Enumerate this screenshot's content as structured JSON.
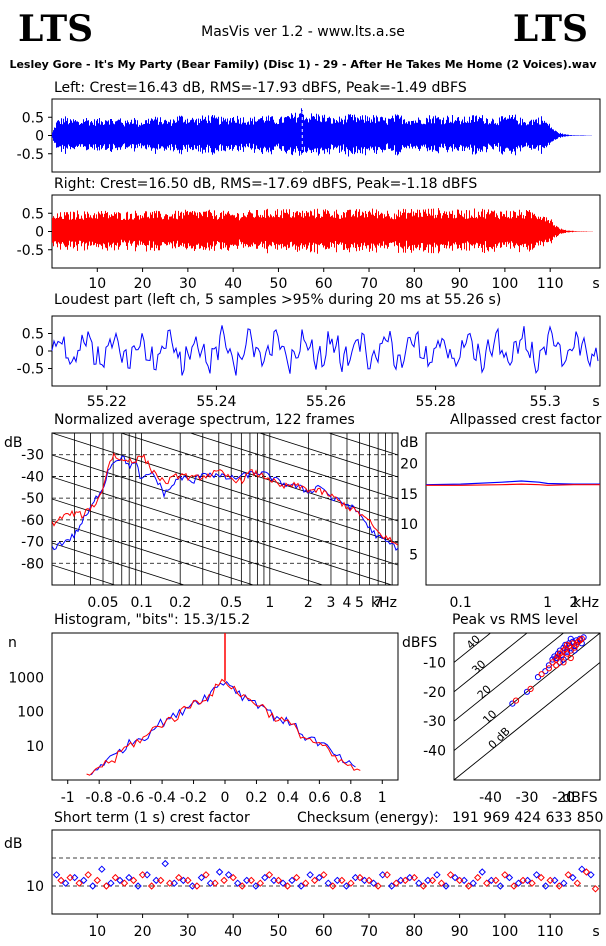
{
  "header": {
    "logo_left": "LTS",
    "logo_right": "LTS",
    "app_title": "MasVis ver 1.2 - www.lts.a.se",
    "filename": "Lesley Gore - It's My Party (Bear Family) (Disc 1) - 29 - After He Takes Me Home (2 Voices).wav"
  },
  "colors": {
    "left": "#0000ff",
    "right": "#ff0000",
    "axis": "#000000",
    "grid": "#000000"
  },
  "panels": {
    "left_wave": {
      "title": "Left: Crest=16.43 dB, RMS=-17.93 dBFS, Peak=-1.49 dBFS"
    },
    "right_wave": {
      "title": "Right: Crest=16.50 dB, RMS=-17.69 dBFS, Peak=-1.18 dBFS"
    },
    "loudest": {
      "title": "Loudest part (left  ch, 5 samples >95% during 20 ms at 55.26 s)"
    },
    "spectrum": {
      "title": "Normalized average spectrum, 122 frames"
    },
    "allpass": {
      "title": "Allpassed crest factor"
    },
    "histogram": {
      "title": "Histogram, \"bits\": 15.3/15.2"
    },
    "peakrms": {
      "title": "Peak vs RMS level"
    },
    "shortterm": {
      "title": "Short term (1 s) crest factor",
      "checksum_label": "Checksum (energy):",
      "checksum_value": "191 969 424 633 850"
    }
  },
  "chart_data": [
    {
      "id": "left_wave",
      "type": "area",
      "title": "Left: Crest=16.43 dB, RMS=-17.93 dBFS, Peak=-1.49 dBFS",
      "ylim": [
        -1,
        1
      ],
      "yticks": [
        "0.5",
        "0",
        "-0.5"
      ],
      "xlim": [
        0,
        121
      ],
      "series": [
        {
          "color": "#0000ff",
          "x": [
            0,
            1,
            2,
            3,
            4,
            5,
            6,
            7,
            8,
            9,
            10,
            11,
            12,
            13,
            14,
            15,
            16,
            17,
            18,
            19,
            20,
            22,
            24,
            26,
            28,
            30,
            32,
            34,
            36,
            38,
            40,
            42,
            44,
            46,
            48,
            50,
            52,
            54,
            55.26,
            56,
            58,
            60,
            62,
            64,
            66,
            68,
            70,
            72,
            74,
            76,
            78,
            80,
            82,
            84,
            86,
            88,
            90,
            92,
            94,
            96,
            98,
            100,
            102,
            104,
            106,
            108,
            110,
            111,
            112,
            113,
            114,
            116,
            118,
            120
          ],
          "amp": [
            0.1,
            0.45,
            0.5,
            0.55,
            0.45,
            0.5,
            0.4,
            0.55,
            0.5,
            0.45,
            0.5,
            0.45,
            0.6,
            0.5,
            0.45,
            0.55,
            0.4,
            0.5,
            0.55,
            0.4,
            0.45,
            0.55,
            0.5,
            0.45,
            0.6,
            0.55,
            0.5,
            0.6,
            0.55,
            0.5,
            0.6,
            0.55,
            0.5,
            0.6,
            0.55,
            0.5,
            0.6,
            0.65,
            0.85,
            0.6,
            0.65,
            0.6,
            0.5,
            0.55,
            0.6,
            0.55,
            0.6,
            0.55,
            0.5,
            0.6,
            0.55,
            0.5,
            0.55,
            0.6,
            0.55,
            0.6,
            0.5,
            0.55,
            0.6,
            0.55,
            0.5,
            0.55,
            0.6,
            0.45,
            0.5,
            0.55,
            0.3,
            0.15,
            0.08,
            0.04,
            0.02,
            0.01,
            0.005,
            0.0
          ]
        }
      ]
    },
    {
      "id": "right_wave",
      "type": "area",
      "title": "Right: Crest=16.50 dB, RMS=-17.69 dBFS, Peak=-1.18 dBFS",
      "ylim": [
        -1,
        1
      ],
      "yticks": [
        "0.5",
        "0",
        "-0.5"
      ],
      "xlim": [
        0,
        121
      ],
      "xticks": [
        "10",
        "20",
        "30",
        "40",
        "50",
        "60",
        "70",
        "80",
        "90",
        "100",
        "110"
      ],
      "xunit": "s",
      "series": [
        {
          "color": "#ff0000",
          "x": [
            0,
            2,
            4,
            6,
            8,
            10,
            15,
            20,
            25,
            30,
            35,
            40,
            45,
            50,
            55,
            60,
            65,
            70,
            75,
            80,
            85,
            90,
            95,
            100,
            105,
            108,
            110,
            111,
            112,
            113,
            114,
            116,
            118,
            120
          ],
          "amp": [
            0.45,
            0.55,
            0.55,
            0.6,
            0.55,
            0.6,
            0.55,
            0.6,
            0.55,
            0.6,
            0.6,
            0.55,
            0.6,
            0.65,
            0.6,
            0.65,
            0.6,
            0.65,
            0.6,
            0.65,
            0.65,
            0.6,
            0.65,
            0.6,
            0.6,
            0.55,
            0.4,
            0.2,
            0.1,
            0.05,
            0.03,
            0.01,
            0.005,
            0.0
          ]
        }
      ]
    },
    {
      "id": "loudest",
      "type": "line",
      "title": "Loudest part (left  ch, 5 samples >95% during 20 ms at 55.26 s)",
      "ylim": [
        -1,
        1
      ],
      "yticks": [
        "0.5",
        "0",
        "-0.5"
      ],
      "xlim": [
        55.21,
        55.31
      ],
      "xticks": [
        "55.22",
        "55.24",
        "55.26",
        "55.28",
        "55.3"
      ],
      "xunit": "s",
      "series": [
        {
          "color": "#0000ff"
        }
      ]
    },
    {
      "id": "spectrum",
      "type": "line",
      "title": "Normalized average spectrum, 122 frames",
      "ylabel": "dB",
      "yticks": [
        "-30",
        "-40",
        "-50",
        "-60",
        "-70",
        "-80"
      ],
      "ylim": [
        -90,
        -20
      ],
      "xticks": [
        "0.05",
        "0.1",
        "0.2",
        "0.5",
        "1",
        "2",
        "3",
        "4",
        "5",
        "7"
      ],
      "xunit": "kHz",
      "xlim": [
        0.02,
        10
      ],
      "xscale": "log",
      "series": [
        {
          "name": "left",
          "color": "#0000ff",
          "x": [
            0.02,
            0.025,
            0.03,
            0.035,
            0.04,
            0.045,
            0.05,
            0.055,
            0.06,
            0.07,
            0.08,
            0.09,
            0.1,
            0.12,
            0.15,
            0.2,
            0.25,
            0.3,
            0.4,
            0.5,
            0.6,
            0.7,
            0.8,
            1,
            1.2,
            1.5,
            2,
            2.5,
            3,
            4,
            5,
            6,
            7,
            8,
            10
          ],
          "y": [
            -73,
            -70,
            -67,
            -60,
            -55,
            -49,
            -45,
            -37,
            -33,
            -31,
            -35,
            -34,
            -42,
            -38,
            -48,
            -40,
            -43,
            -38,
            -40,
            -41,
            -40,
            -39,
            -38,
            -40,
            -43,
            -44,
            -47,
            -44,
            -50,
            -53,
            -57,
            -64,
            -68,
            -70,
            -73
          ]
        },
        {
          "name": "right",
          "color": "#ff0000",
          "x": [
            0.02,
            0.025,
            0.03,
            0.035,
            0.04,
            0.045,
            0.05,
            0.055,
            0.06,
            0.07,
            0.08,
            0.09,
            0.1,
            0.12,
            0.15,
            0.2,
            0.25,
            0.3,
            0.4,
            0.5,
            0.6,
            0.7,
            0.8,
            1,
            1.2,
            1.5,
            2,
            2.5,
            3,
            4,
            5,
            6,
            7,
            8,
            10
          ],
          "y": [
            -62,
            -58,
            -57,
            -58,
            -54,
            -52,
            -45,
            -35,
            -30,
            -33,
            -32,
            -33,
            -30,
            -37,
            -43,
            -39,
            -41,
            -40,
            -38,
            -41,
            -42,
            -38,
            -39,
            -41,
            -45,
            -44,
            -46,
            -47,
            -49,
            -54,
            -57,
            -61,
            -66,
            -68,
            -72
          ]
        }
      ]
    },
    {
      "id": "allpass",
      "type": "line",
      "title": "Allpassed crest factor",
      "ylabel": "dB",
      "yticks": [
        "20",
        "15",
        "10",
        "5"
      ],
      "ylim": [
        0,
        25
      ],
      "xticks": [
        "0.1",
        "1",
        "2"
      ],
      "xunit": "kHz",
      "xscale": "log",
      "xlim": [
        0.04,
        4
      ],
      "series": [
        {
          "name": "left",
          "color": "#0000ff",
          "x": [
            0.04,
            0.1,
            0.3,
            0.5,
            0.8,
            1,
            2,
            4
          ],
          "y": [
            16.5,
            16.6,
            16.9,
            17.1,
            16.9,
            16.7,
            16.6,
            16.6
          ]
        },
        {
          "name": "right",
          "color": "#ff0000",
          "x": [
            0.04,
            0.1,
            0.3,
            0.5,
            0.8,
            1,
            2,
            4
          ],
          "y": [
            16.4,
            16.4,
            16.5,
            16.6,
            16.5,
            16.4,
            16.5,
            16.5
          ]
        }
      ]
    },
    {
      "id": "histogram",
      "type": "line",
      "title": "Histogram, \"bits\": 15.3/15.2",
      "ylabel": "n",
      "yscale": "log",
      "yticks": [
        "1000",
        "100",
        "10"
      ],
      "ylim": [
        1,
        20000
      ],
      "xticks": [
        "-1",
        "-0.8",
        "-0.6",
        "-0.4",
        "-0.2",
        "0",
        "0.2",
        "0.4",
        "0.6",
        "0.8",
        "1"
      ],
      "xlim": [
        -1.1,
        1.1
      ],
      "series": [
        {
          "name": "left",
          "color": "#0000ff",
          "x": [
            -0.85,
            -0.7,
            -0.5,
            -0.3,
            -0.1,
            0,
            0.1,
            0.3,
            0.5,
            0.7,
            0.85
          ],
          "y": [
            1.5,
            5,
            20,
            80,
            300,
            800,
            300,
            80,
            20,
            5,
            1.5
          ]
        },
        {
          "name": "right",
          "color": "#ff0000",
          "x": [
            -0.88,
            -0.7,
            -0.5,
            -0.3,
            -0.1,
            0,
            0.1,
            0.3,
            0.5,
            0.7,
            0.88
          ],
          "y": [
            1.2,
            4,
            18,
            75,
            290,
            800,
            290,
            75,
            18,
            4,
            1.2
          ]
        }
      ]
    },
    {
      "id": "peakrms",
      "type": "scatter",
      "title": "Peak vs RMS level",
      "ylabel": "dBFS",
      "yticks": [
        "-10",
        "-20",
        "-30",
        "-40"
      ],
      "ylim": [
        -50,
        0
      ],
      "xticks": [
        "-40",
        "-30",
        "-20"
      ],
      "xunit": "dBFS",
      "xlim": [
        -50,
        -10
      ],
      "crest_lines": [
        "40",
        "30",
        "20",
        "10",
        "0 dB"
      ],
      "series": [
        {
          "name": "left",
          "color": "#0000ff",
          "x": [
            -34,
            -30,
            -27,
            -25,
            -24,
            -23,
            -22.5,
            -22,
            -21.5,
            -21,
            -20.5,
            -20,
            -19.5,
            -19,
            -18.5,
            -18,
            -17.5,
            -17,
            -16.5,
            -16,
            -15.5,
            -15,
            -14.5,
            -21,
            -19,
            -18,
            -20,
            -17
          ],
          "y": [
            -24,
            -20,
            -15,
            -13,
            -11,
            -9,
            -8,
            -8.5,
            -7,
            -6,
            -7.5,
            -5,
            -4,
            -6,
            -3.5,
            -5,
            -3,
            -4.5,
            -2.5,
            -3,
            -2,
            -3.5,
            -1.5,
            -10,
            -6.5,
            -2,
            -9,
            -6
          ]
        },
        {
          "name": "right",
          "color": "#ff0000",
          "x": [
            -33,
            -29,
            -26,
            -24,
            -23,
            -22,
            -21.5,
            -21,
            -20.5,
            -20,
            -19.5,
            -19,
            -18.5,
            -18,
            -17.5,
            -17,
            -16.5,
            -16,
            -15.5,
            -15,
            -20,
            -18,
            -22,
            -19
          ],
          "y": [
            -23,
            -19,
            -14,
            -12,
            -10,
            -9,
            -8,
            -7,
            -8,
            -6,
            -5.5,
            -7,
            -4.5,
            -6,
            -3.5,
            -5,
            -4,
            -3,
            -2.5,
            -2,
            -10,
            -8.5,
            -11,
            -4
          ]
        }
      ]
    },
    {
      "id": "shortterm",
      "type": "scatter",
      "title": "Short term (1 s) crest factor",
      "ylabel": "dB",
      "yticks": [
        "10"
      ],
      "ylim": [
        0,
        30
      ],
      "xticks": [
        "10",
        "20",
        "30",
        "40",
        "50",
        "60",
        "70",
        "80",
        "90",
        "100",
        "110"
      ],
      "xunit": "s",
      "xlim": [
        0,
        121
      ],
      "series": [
        {
          "name": "left",
          "color": "#0000ff",
          "x": [
            1,
            3,
            5,
            7,
            9,
            11,
            13,
            15,
            17,
            19,
            21,
            23,
            25,
            27,
            29,
            31,
            33,
            35,
            37,
            39,
            41,
            43,
            45,
            47,
            49,
            51,
            53,
            55,
            57,
            59,
            61,
            63,
            65,
            67,
            69,
            71,
            73,
            75,
            77,
            79,
            81,
            83,
            85,
            87,
            89,
            91,
            93,
            95,
            97,
            99,
            101,
            103,
            105,
            107,
            109,
            111,
            113,
            115,
            117,
            119
          ],
          "y": [
            14,
            11,
            13,
            12,
            10,
            16,
            11,
            12,
            13,
            10,
            14,
            12,
            18,
            11,
            12,
            10,
            13,
            11,
            15,
            14,
            11,
            12,
            10,
            13,
            12,
            11,
            12,
            10,
            14,
            13,
            11,
            12,
            10,
            13,
            12,
            11,
            14,
            10,
            12,
            13,
            11,
            12,
            14,
            10,
            13,
            12,
            11,
            15,
            12,
            10,
            13,
            11,
            12,
            14,
            10,
            12,
            11,
            13,
            16,
            14
          ]
        },
        {
          "name": "right",
          "color": "#ff0000",
          "x": [
            2,
            4,
            6,
            8,
            10,
            12,
            14,
            16,
            18,
            20,
            22,
            24,
            26,
            28,
            30,
            32,
            34,
            36,
            38,
            40,
            42,
            44,
            46,
            48,
            50,
            52,
            54,
            56,
            58,
            60,
            62,
            64,
            66,
            68,
            70,
            72,
            74,
            76,
            78,
            80,
            82,
            84,
            86,
            88,
            90,
            92,
            94,
            96,
            98,
            100,
            102,
            104,
            106,
            108,
            110,
            112,
            114,
            116,
            118,
            120
          ],
          "y": [
            12,
            13,
            11,
            14,
            12,
            10,
            13,
            11,
            12,
            14,
            10,
            12,
            11,
            13,
            12,
            10,
            14,
            11,
            12,
            13,
            10,
            12,
            11,
            14,
            12,
            10,
            13,
            11,
            12,
            14,
            10,
            12,
            11,
            13,
            12,
            10,
            14,
            11,
            12,
            13,
            10,
            12,
            11,
            14,
            12,
            10,
            13,
            11,
            12,
            14,
            10,
            12,
            11,
            13,
            12,
            10,
            14,
            11,
            15,
            9
          ]
        }
      ]
    }
  ]
}
